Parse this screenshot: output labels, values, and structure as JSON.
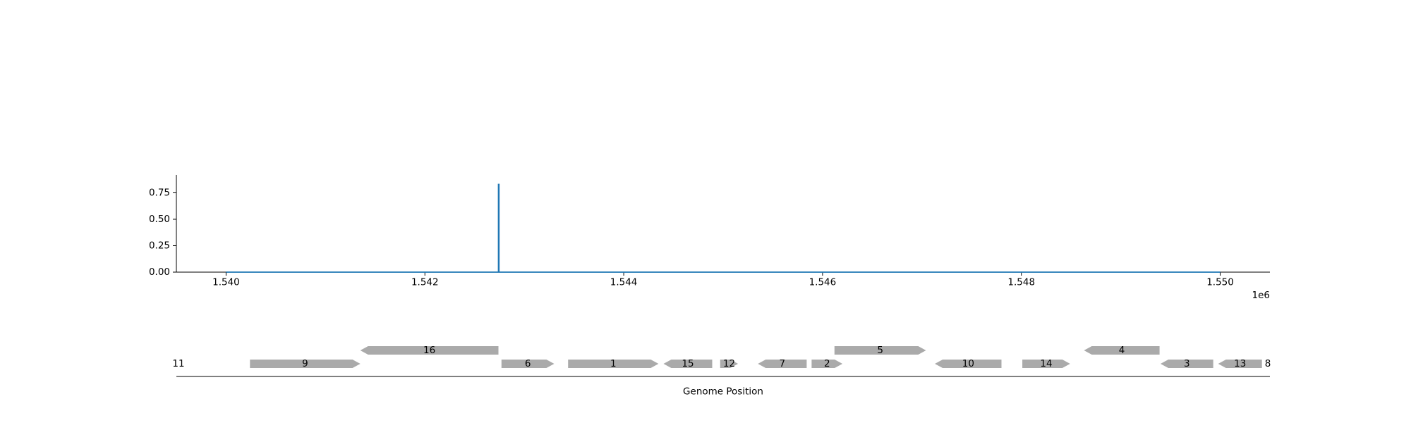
{
  "chart_data": [
    {
      "type": "line",
      "title": "",
      "xlabel": "",
      "ylabel": "",
      "x_offset_label": "1e6",
      "xlim": [
        1539500,
        1550500
      ],
      "ylim": [
        0,
        0.92
      ],
      "x_ticks": [
        1540000,
        1542000,
        1544000,
        1546000,
        1548000,
        1550000
      ],
      "x_tick_labels": [
        "1.540",
        "1.542",
        "1.544",
        "1.546",
        "1.548",
        "1.550"
      ],
      "y_ticks": [
        0,
        0.25,
        0.5,
        0.75
      ],
      "y_tick_labels": [
        "0.00",
        "0.25",
        "0.50",
        "0.75"
      ],
      "grid": false,
      "line_color": "#1f77b4",
      "series": [
        {
          "x": [
            1540000,
            1542740,
            1542740,
            1542745,
            1542745,
            1550000
          ],
          "values": [
            0,
            0,
            0.83,
            0.83,
            0,
            0
          ]
        }
      ]
    },
    {
      "type": "gene_track",
      "xlabel": "Genome Position",
      "xlim": [
        1539500,
        1550500
      ],
      "gene_color": "#aaaaaa",
      "genes": [
        {
          "label": "11",
          "start": 1539400,
          "end": 1539460,
          "strand": 1,
          "row": 0
        },
        {
          "label": "9",
          "start": 1540240,
          "end": 1541350,
          "strand": 1,
          "row": 0
        },
        {
          "label": "16",
          "start": 1541350,
          "end": 1542740,
          "strand": -1,
          "row": 1
        },
        {
          "label": "6",
          "start": 1542770,
          "end": 1543300,
          "strand": 1,
          "row": 0
        },
        {
          "label": "1",
          "start": 1543440,
          "end": 1544350,
          "strand": 1,
          "row": 0
        },
        {
          "label": "15",
          "start": 1544400,
          "end": 1544890,
          "strand": -1,
          "row": 0
        },
        {
          "label": "12",
          "start": 1544970,
          "end": 1545150,
          "strand": 1,
          "row": 0
        },
        {
          "label": "7",
          "start": 1545350,
          "end": 1545840,
          "strand": -1,
          "row": 0
        },
        {
          "label": "2",
          "start": 1545890,
          "end": 1546200,
          "strand": 1,
          "row": 0
        },
        {
          "label": "5",
          "start": 1546120,
          "end": 1547040,
          "strand": 1,
          "row": 1
        },
        {
          "label": "10",
          "start": 1547130,
          "end": 1547800,
          "strand": -1,
          "row": 0
        },
        {
          "label": "14",
          "start": 1548010,
          "end": 1548490,
          "strand": 1,
          "row": 0
        },
        {
          "label": "4",
          "start": 1548630,
          "end": 1549390,
          "strand": -1,
          "row": 1
        },
        {
          "label": "3",
          "start": 1549400,
          "end": 1549930,
          "strand": -1,
          "row": 0
        },
        {
          "label": "13",
          "start": 1549980,
          "end": 1550420,
          "strand": -1,
          "row": 0
        },
        {
          "label": "8",
          "start": 1550510,
          "end": 1550570,
          "strand": 1,
          "row": 0
        }
      ]
    }
  ]
}
